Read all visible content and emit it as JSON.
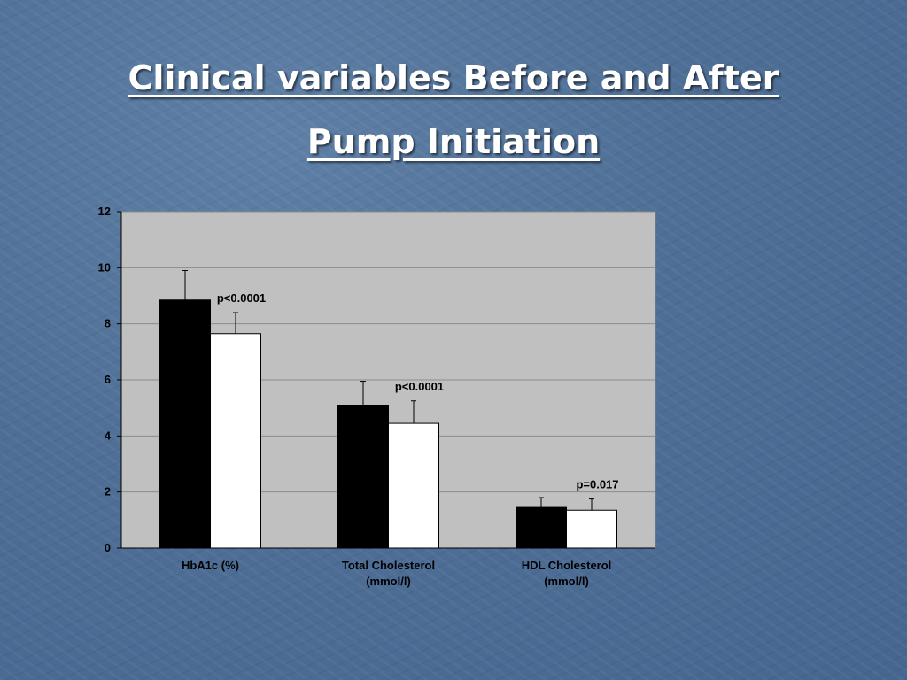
{
  "slide": {
    "title_line1": "Clinical variables Before and After",
    "title_line2": "Pump Initiation"
  },
  "chart_data": {
    "type": "bar",
    "categories": [
      [
        "HbA1c (%)"
      ],
      [
        "Total Cholesterol",
        "(mmol/l)"
      ],
      [
        "HDL Cholesterol",
        "(mmol/l)"
      ]
    ],
    "series": [
      {
        "values": [
          8.85,
          5.1,
          1.45
        ],
        "error": [
          1.05,
          0.85,
          0.35
        ],
        "color": "#000000"
      },
      {
        "values": [
          7.65,
          4.45,
          1.35
        ],
        "error": [
          0.75,
          0.8,
          0.4
        ],
        "color": "#ffffff"
      }
    ],
    "annotations": [
      "p<0.0001",
      "p<0.0001",
      "p=0.017"
    ],
    "yticks": [
      "0",
      "2",
      "4",
      "6",
      "8",
      "10",
      "12"
    ],
    "ylim": [
      0,
      12
    ],
    "grid": true,
    "plot_background": "#c0c0c0"
  }
}
